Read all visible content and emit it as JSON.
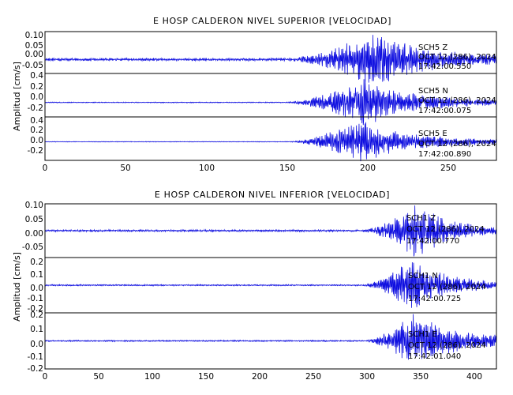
{
  "chart_data": [
    {
      "type": "line",
      "title": "E HOSP CALDERON NIVEL SUPERIOR [VELOCIDAD]",
      "ylabel": "Amplitud [cm/s]",
      "xlabel": "",
      "xlim": [
        0,
        280
      ],
      "x_ticks": [
        "0",
        "50",
        "100",
        "150",
        "200",
        "250"
      ],
      "grid": false,
      "line_color": "#1010e0",
      "panels": [
        {
          "ylim": [
            -0.05,
            0.1
          ],
          "y_ticks": [
            "0.10",
            "0.05",
            "0.00",
            "-0.05"
          ],
          "annotation": [
            "SCH5  Z",
            "OCT 12 (286), 2024",
            "17:42:00.550"
          ],
          "trace": {
            "noise_amp": 0.004,
            "onset_s": 150,
            "peak_s": 205,
            "peak_amp": 0.085,
            "decay_s": 30,
            "end_amp": 0.008
          }
        },
        {
          "ylim": [
            -0.2,
            0.4
          ],
          "y_ticks": [
            "0.4",
            "0.2",
            "0.0",
            "-0.2"
          ],
          "annotation": [
            "SCH5  N",
            "OCT 12 (286), 2024",
            "17:42:00.075"
          ],
          "trace": {
            "noise_amp": 0.005,
            "onset_s": 150,
            "peak_s": 198,
            "peak_amp": 0.28,
            "decay_s": 28,
            "end_amp": 0.02
          }
        },
        {
          "ylim": [
            -0.3,
            0.4
          ],
          "y_ticks": [
            "0.4",
            "0.2",
            "0.0",
            "-0.2"
          ],
          "annotation": [
            "SCH5  E",
            "OCT 12 (286), 2024",
            "17:42:00.890"
          ],
          "trace": {
            "noise_amp": 0.004,
            "onset_s": 151,
            "peak_s": 195,
            "peak_amp": 0.3,
            "decay_s": 25,
            "end_amp": 0.03
          }
        }
      ]
    },
    {
      "type": "line",
      "title": "E HOSP CALDERON NIVEL INFERIOR [VELOCIDAD]",
      "ylabel": "Amplitud [cm/s]",
      "xlabel": "",
      "xlim": [
        0,
        420
      ],
      "x_ticks": [
        "0",
        "50",
        "100",
        "150",
        "200",
        "250",
        "300",
        "350",
        "400"
      ],
      "grid": false,
      "line_color": "#1010e0",
      "panels": [
        {
          "ylim": [
            -0.1,
            0.1
          ],
          "y_ticks": [
            "0.10",
            "0.05",
            "0.00",
            "-0.05"
          ],
          "annotation": [
            "SCH1  Z",
            "OCT 12 (286), 2024",
            "17:42:00.770"
          ],
          "trace": {
            "noise_amp": 0.003,
            "onset_s": 295,
            "peak_s": 345,
            "peak_amp": 0.085,
            "decay_s": 30,
            "end_amp": 0.006
          }
        },
        {
          "ylim": [
            -0.3,
            0.3
          ],
          "y_ticks": [
            "0.2",
            "0.1",
            "0.0",
            "-0.1",
            "-0.2"
          ],
          "annotation": [
            "SCH1  N",
            "OCT 12 (286), 2024",
            "17:42:00.725"
          ],
          "trace": {
            "noise_amp": 0.006,
            "onset_s": 296,
            "peak_s": 340,
            "peak_amp": 0.24,
            "decay_s": 32,
            "end_amp": 0.02
          }
        },
        {
          "ylim": [
            -0.2,
            0.2
          ],
          "y_ticks": [
            "0.2",
            "0.1",
            "0.0",
            "-0.1",
            "-0.2"
          ],
          "annotation": [
            "SCH1  E",
            "OCT 12 (286), 2024",
            "17:42:01.040"
          ],
          "trace": {
            "noise_amp": 0.004,
            "onset_s": 298,
            "peak_s": 342,
            "peak_amp": 0.17,
            "decay_s": 35,
            "end_amp": 0.02
          }
        }
      ]
    }
  ]
}
